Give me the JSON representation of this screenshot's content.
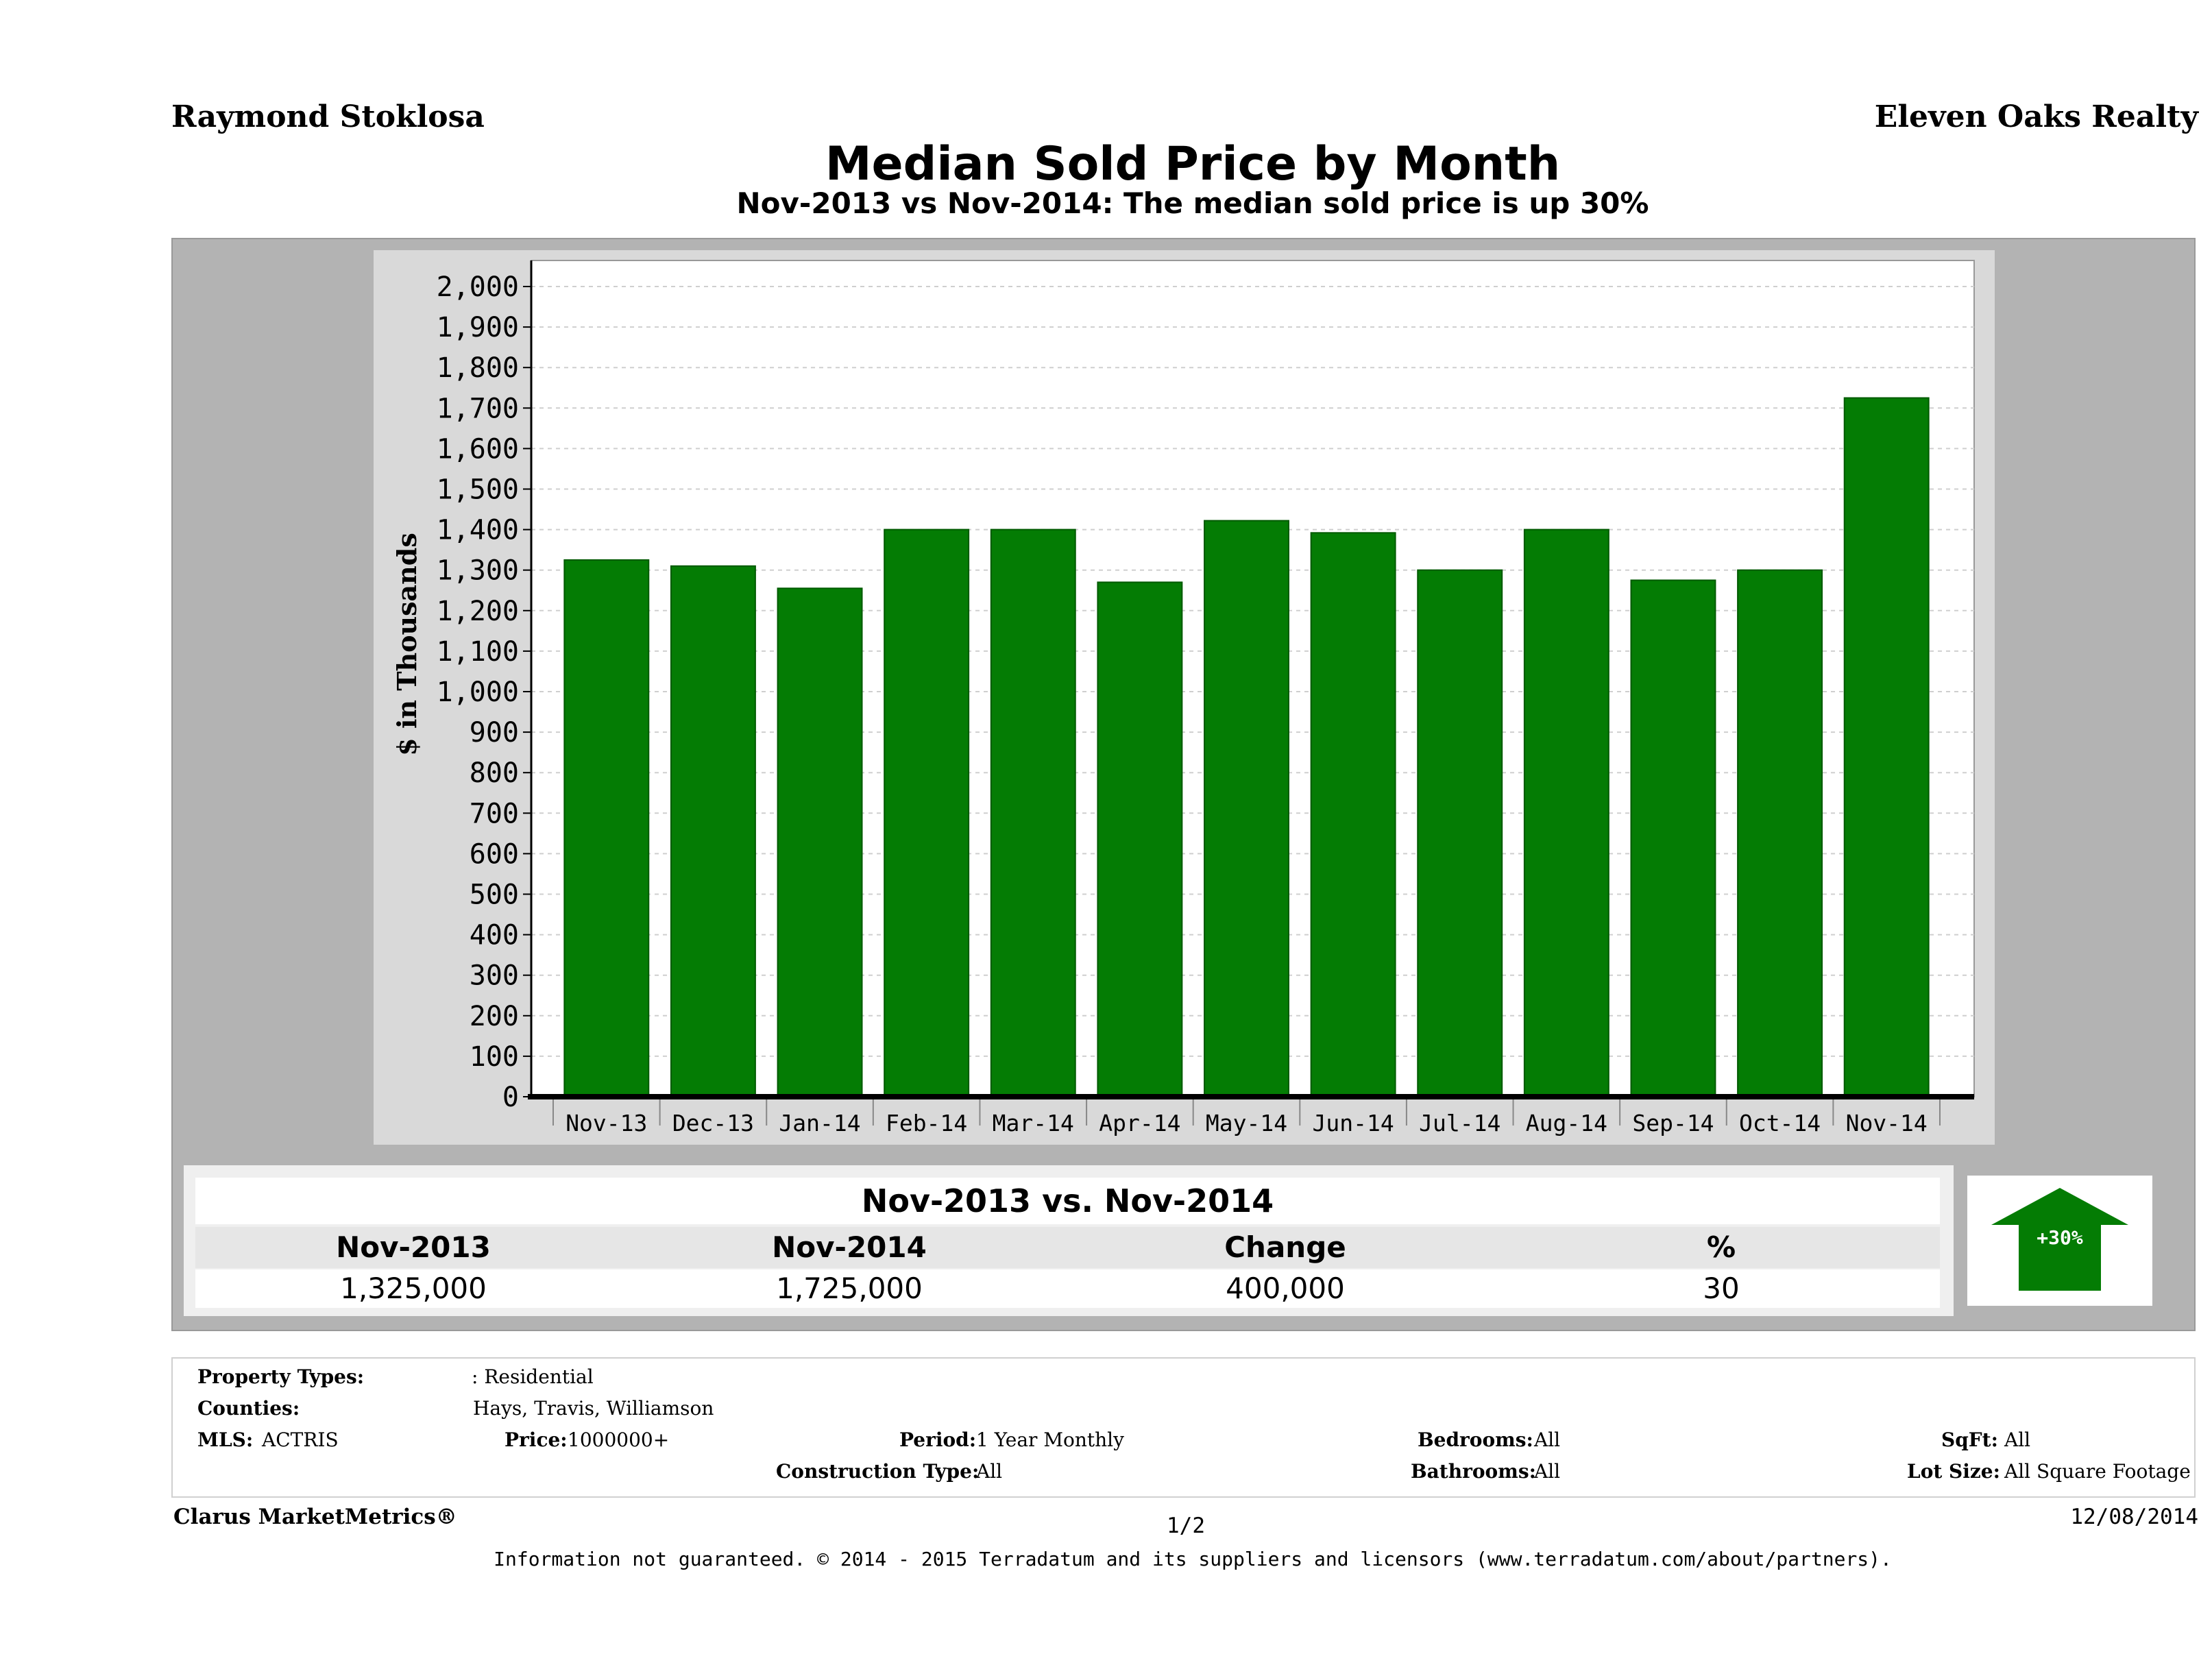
{
  "header": {
    "agent_name": "Raymond Stoklosa",
    "company_name": "Eleven Oaks Realty"
  },
  "chart_data": {
    "type": "bar",
    "title": "Median Sold Price by Month",
    "subtitle": "Nov-2013 vs Nov-2014: The median sold price is up 30%",
    "ylabel": "$ in Thousands",
    "xlabel": "",
    "categories": [
      "Nov-13",
      "Dec-13",
      "Jan-14",
      "Feb-14",
      "Mar-14",
      "Apr-14",
      "May-14",
      "Jun-14",
      "Jul-14",
      "Aug-14",
      "Sep-14",
      "Oct-14",
      "Nov-14"
    ],
    "values": [
      1325,
      1310,
      1255,
      1400,
      1400,
      1270,
      1422,
      1392,
      1300,
      1400,
      1275,
      1300,
      1725
    ],
    "ylim": [
      0,
      2000
    ],
    "yticks": [
      "0",
      "100",
      "200",
      "300",
      "400",
      "500",
      "600",
      "700",
      "800",
      "900",
      "1,000",
      "1,100",
      "1,200",
      "1,300",
      "1,400",
      "1,500",
      "1,600",
      "1,700",
      "1,800",
      "1,900",
      "2,000"
    ],
    "grid": true,
    "bar_color": "#047c04"
  },
  "summary": {
    "title": "Nov-2013 vs. Nov-2014",
    "headers": [
      "Nov-2013",
      "Nov-2014",
      "Change",
      "%"
    ],
    "values": [
      "1,325,000",
      "1,725,000",
      "400,000",
      "30"
    ],
    "badge": "+30%",
    "badge_icon": "up-arrow-icon"
  },
  "criteria": {
    "property_types_label": "Property Types:",
    "property_types_value": ": Residential",
    "counties_label": "Counties:",
    "counties_value": "Hays, Travis, Williamson",
    "mls_label": "MLS:",
    "mls_value": "ACTRIS",
    "price_label": "Price:",
    "price_value": "1000000+",
    "period_label": "Period:",
    "period_value": "1 Year Monthly",
    "construction_label": "Construction Type:",
    "construction_value": "All",
    "bedrooms_label": "Bedrooms:",
    "bedrooms_value": "All",
    "bathrooms_label": "Bathrooms:",
    "bathrooms_value": "All",
    "sqft_label": "SqFt:",
    "sqft_value": "All",
    "lotsize_label": "Lot Size:",
    "lotsize_value": "All Square Footage"
  },
  "footer": {
    "brand": "Clarus MarketMetrics®",
    "page": "1/2",
    "date": "12/08/2014",
    "disclaimer": "Information not guaranteed. © 2014 - 2015 Terradatum and its suppliers and licensors (www.terradatum.com/about/partners)."
  }
}
